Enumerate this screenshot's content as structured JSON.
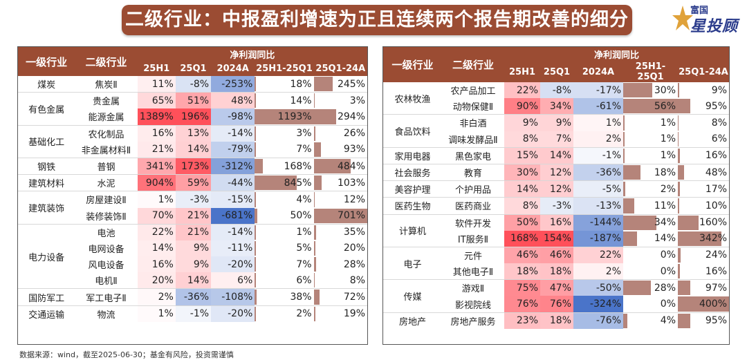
{
  "title": "二级行业：中报盈利增速为正且连续两个报告期改善的细分",
  "logo": {
    "top": "富国",
    "main": "星投顾"
  },
  "headers": {
    "level1": "一级行业",
    "level2": "二级行业",
    "group": "净利润同比",
    "cols": [
      "25H1",
      "25Q1",
      "2024A",
      "25H1-25Q1",
      "25Q1-24A"
    ]
  },
  "left_rows": [
    {
      "cat": "煤炭",
      "sub": "焦炭Ⅱ",
      "v": [
        11,
        -8,
        -253,
        18,
        245
      ]
    },
    {
      "cat": "有色金属",
      "sub": "贵金属",
      "v": [
        65,
        51,
        48,
        14,
        3
      ]
    },
    {
      "cat": "",
      "sub": "能源金属",
      "v": [
        1389,
        196,
        -98,
        1193,
        294
      ]
    },
    {
      "cat": "基础化工",
      "sub": "农化制品",
      "v": [
        16,
        13,
        -14,
        3,
        26
      ]
    },
    {
      "cat": "",
      "sub": "非金属材料Ⅱ",
      "v": [
        21,
        14,
        -79,
        7,
        93
      ]
    },
    {
      "cat": "钢铁",
      "sub": "普钢",
      "v": [
        341,
        173,
        -312,
        168,
        484
      ]
    },
    {
      "cat": "建筑材料",
      "sub": "水泥",
      "v": [
        904,
        59,
        -44,
        845,
        103
      ]
    },
    {
      "cat": "建筑装饰",
      "sub": "房屋建设Ⅱ",
      "v": [
        1,
        -3,
        -15,
        4,
        12
      ]
    },
    {
      "cat": "",
      "sub": "装修装饰Ⅱ",
      "v": [
        70,
        21,
        -681,
        50,
        701
      ]
    },
    {
      "cat": "电力设备",
      "sub": "电池",
      "v": [
        22,
        21,
        -14,
        1,
        35
      ]
    },
    {
      "cat": "",
      "sub": "电网设备",
      "v": [
        14,
        9,
        -11,
        5,
        20
      ]
    },
    {
      "cat": "",
      "sub": "风电设备",
      "v": [
        16,
        9,
        -20,
        7,
        28
      ]
    },
    {
      "cat": "",
      "sub": "电机Ⅱ",
      "v": [
        20,
        14,
        6,
        6,
        8
      ]
    },
    {
      "cat": "国防军工",
      "sub": "军工电子Ⅱ",
      "v": [
        2,
        -36,
        -108,
        38,
        72
      ]
    },
    {
      "cat": "交通运输",
      "sub": "物流",
      "v": [
        1,
        -1,
        -20,
        2,
        19
      ]
    }
  ],
  "right_rows": [
    {
      "cat": "农林牧渔",
      "sub": "农产品加工",
      "v": [
        22,
        -8,
        -17,
        30,
        9
      ]
    },
    {
      "cat": "",
      "sub": "动物保健Ⅱ",
      "v": [
        90,
        34,
        -61,
        56,
        95
      ]
    },
    {
      "cat": "食品饮料",
      "sub": "非白酒",
      "v": [
        9,
        9,
        1,
        1,
        8
      ]
    },
    {
      "cat": "",
      "sub": "调味发酵品Ⅱ",
      "v": [
        8,
        7,
        2,
        1,
        6
      ]
    },
    {
      "cat": "家用电器",
      "sub": "黑色家电",
      "v": [
        15,
        14,
        -1,
        1,
        16
      ]
    },
    {
      "cat": "社会服务",
      "sub": "教育",
      "v": [
        30,
        12,
        -36,
        18,
        48
      ]
    },
    {
      "cat": "美容护理",
      "sub": "个护用品",
      "v": [
        14,
        12,
        -5,
        2,
        17
      ]
    },
    {
      "cat": "医药生物",
      "sub": "医药商业",
      "v": [
        8,
        -3,
        -13,
        11,
        10
      ]
    },
    {
      "cat": "计算机",
      "sub": "软件开发",
      "v": [
        50,
        16,
        -144,
        34,
        160
      ]
    },
    {
      "cat": "",
      "sub": "IT服务Ⅱ",
      "v": [
        168,
        154,
        -187,
        14,
        342
      ]
    },
    {
      "cat": "电子",
      "sub": "元件",
      "v": [
        46,
        46,
        22,
        0,
        24
      ]
    },
    {
      "cat": "",
      "sub": "其他电子Ⅱ",
      "v": [
        18,
        18,
        2,
        0,
        16
      ]
    },
    {
      "cat": "传媒",
      "sub": "游戏Ⅱ",
      "v": [
        75,
        47,
        -50,
        28,
        97
      ]
    },
    {
      "cat": "",
      "sub": "影视院线",
      "v": [
        76,
        76,
        -324,
        0,
        400
      ]
    },
    {
      "cat": "房地产",
      "sub": "房地产服务",
      "v": [
        23,
        18,
        -76,
        4,
        95
      ]
    }
  ],
  "footer": "数据来源：wind，截至2025-06-30；基金有风险，投资需谨慎",
  "colors": {
    "accent": "#9b4c33",
    "bar": "#a86f63",
    "pos": "#e8515a",
    "neg": "#4a74c9"
  }
}
